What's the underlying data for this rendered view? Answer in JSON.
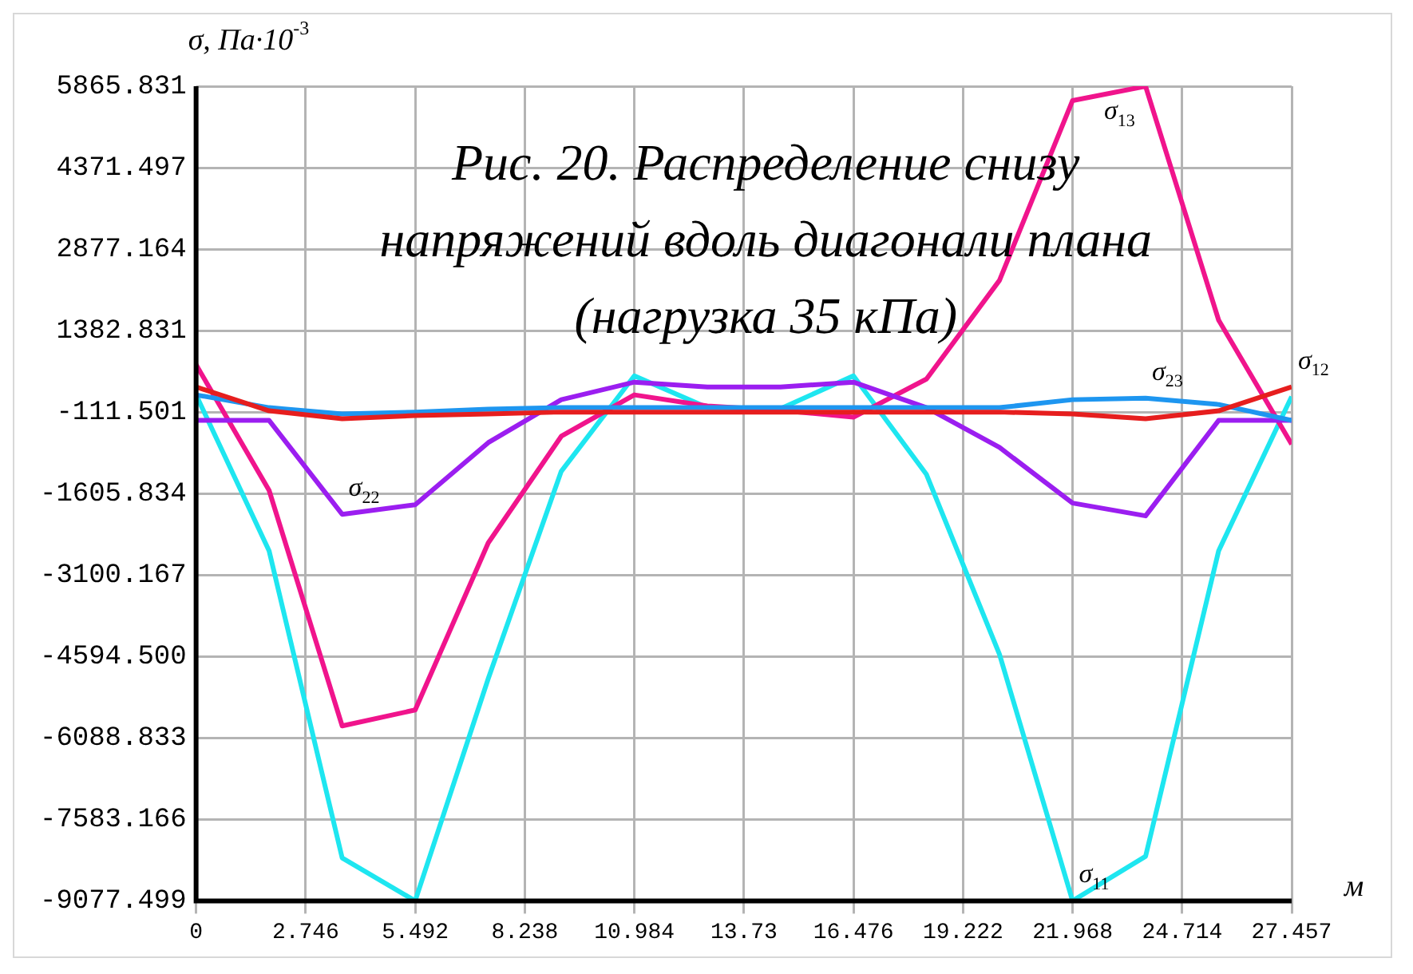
{
  "chart_data": {
    "type": "line",
    "title": "Рис. 20. Распределение снизу\nнапряжений вдоль диагонали плана\n(нагрузка 35 кПа)",
    "ylabel": "σ, Па·10$^{-3}$",
    "xlabel": "м",
    "x": [
      0,
      1.83,
      3.661,
      5.491,
      7.322,
      9.152,
      10.983,
      12.813,
      14.644,
      16.474,
      18.305,
      20.135,
      21.966,
      23.796,
      25.627,
      27.457
    ],
    "series": [
      {
        "color": "#e61e1e",
        "values": [
          350,
          -88,
          -234,
          -176,
          -147,
          -111,
          -111,
          -111,
          -111,
          -111,
          -111,
          -111,
          -147,
          -234,
          -88,
          350
        ]
      },
      {
        "color": "#1e96f0",
        "values": [
          204,
          -30,
          -147,
          -111,
          -59,
          -30,
          -30,
          -30,
          -30,
          -30,
          -30,
          -30,
          116,
          145,
          28,
          -264
        ]
      },
      {
        "color": "#9b1ef0",
        "values": [
          -264,
          -264,
          -1986,
          -1811,
          -672,
          116,
          437,
          350,
          350,
          437,
          -30,
          -760,
          -1781,
          -2015,
          -264,
          -264
        ]
      },
      {
        "color": "#f0148c",
        "values": [
          758,
          -1548,
          -5868,
          -5576,
          -2511,
          -555,
          204,
          0,
          -80,
          -205,
          495,
          2305,
          5603,
          5865,
          1575,
          -701
        ]
      },
      {
        "color": "#1ee6f0",
        "values": [
          204,
          -2657,
          -8290,
          -9077,
          -5000,
          -1198,
          554,
          -30,
          -50,
          554,
          -1256,
          -4555,
          -9077,
          -8261,
          -2657,
          174
        ]
      }
    ],
    "xlim": [
      0,
      27.457
    ],
    "xticks": [
      0,
      2.746,
      5.492,
      8.238,
      10.984,
      13.73,
      16.476,
      19.222,
      21.968,
      24.714,
      27.457
    ],
    "ylim": [
      -9077.499,
      5865.831
    ],
    "yticks": [
      -9077.499,
      -7583.166,
      -6088.833,
      {
        "value": -4594.5,
        "label": "-4594.500"
      },
      -3100.167,
      -1605.834,
      -111.501,
      1382.831,
      2877.164,
      4371.497,
      5865.831
    ],
    "annotations": [
      {
        "text": "σ$_{13}$",
        "x": 23.796,
        "y": 5865
      },
      {
        "text": "σ$_{23}$",
        "x": 23.796,
        "y": 145
      },
      {
        "text": "σ$_{12}$",
        "x": 27.457,
        "y": 350
      },
      {
        "text": "σ$_{22}$",
        "x": 3.661,
        "y": -1986
      },
      {
        "text": "σ$_{11}$",
        "x": 21.966,
        "y": -9077
      }
    ],
    "grid": true,
    "legend": false,
    "marker": "none",
    "line_style": "solid"
  }
}
